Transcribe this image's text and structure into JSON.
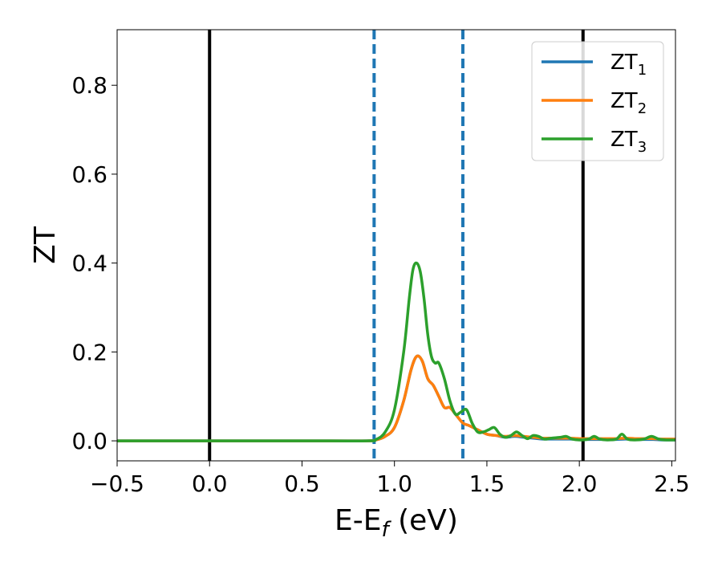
{
  "chart_data": {
    "type": "line",
    "title": "",
    "xlabel": "E-E_f (eV)",
    "ylabel": "ZT",
    "xlim": [
      -0.5,
      2.52
    ],
    "ylim": [
      -0.045,
      0.925
    ],
    "x_ticks": [
      -0.5,
      0.0,
      0.5,
      1.0,
      1.5,
      2.0,
      2.5
    ],
    "x_tick_labels": [
      "−0.5",
      "0.0",
      "0.5",
      "1.0",
      "1.5",
      "2.0",
      "2.5"
    ],
    "y_ticks": [
      0.0,
      0.2,
      0.4,
      0.6,
      0.8
    ],
    "y_tick_labels": [
      "0.0",
      "0.2",
      "0.4",
      "0.6",
      "0.8"
    ],
    "grid": false,
    "legend_position": "top-right",
    "vertical_lines": [
      {
        "x": 0.0,
        "color": "#000000",
        "style": "solid"
      },
      {
        "x": 2.02,
        "color": "#000000",
        "style": "solid"
      },
      {
        "x": 0.89,
        "color": "#1f77b4",
        "style": "dashed"
      },
      {
        "x": 1.37,
        "color": "#1f77b4",
        "style": "dashed"
      }
    ],
    "series": [
      {
        "name": "ZT_1",
        "color": "#1f77b4",
        "x": [
          -0.5,
          0.0,
          0.5,
          0.85,
          0.9,
          0.95,
          1.0,
          1.05,
          1.09,
          1.12,
          1.15,
          1.18,
          1.21,
          1.24,
          1.27,
          1.3,
          1.33,
          1.37,
          1.4,
          1.45,
          1.5,
          1.55,
          1.6,
          1.65,
          1.7,
          1.75,
          1.8,
          1.85,
          1.9,
          1.95,
          2.0,
          2.05,
          2.1,
          2.15,
          2.2,
          2.25,
          2.3,
          2.35,
          2.4,
          2.45,
          2.52
        ],
        "y": [
          0.0,
          0.0,
          0.0,
          0.0,
          0.002,
          0.01,
          0.03,
          0.09,
          0.16,
          0.19,
          0.18,
          0.14,
          0.125,
          0.1,
          0.075,
          0.075,
          0.06,
          0.04,
          0.035,
          0.025,
          0.015,
          0.012,
          0.008,
          0.01,
          0.008,
          0.006,
          0.004,
          0.004,
          0.004,
          0.004,
          0.003,
          0.003,
          0.003,
          0.003,
          0.003,
          0.004,
          0.003,
          0.003,
          0.003,
          0.002,
          0.002
        ]
      },
      {
        "name": "ZT_2",
        "color": "#ff7f0e",
        "x": [
          -0.5,
          0.0,
          0.5,
          0.85,
          0.9,
          0.95,
          1.0,
          1.05,
          1.09,
          1.12,
          1.15,
          1.18,
          1.21,
          1.24,
          1.27,
          1.3,
          1.33,
          1.37,
          1.4,
          1.45,
          1.5,
          1.55,
          1.6,
          1.65,
          1.7,
          1.75,
          1.8,
          1.85,
          1.9,
          1.95,
          2.0,
          2.05,
          2.1,
          2.15,
          2.2,
          2.25,
          2.3,
          2.35,
          2.4,
          2.45,
          2.52
        ],
        "y": [
          0.0,
          0.0,
          0.0,
          0.0,
          0.002,
          0.01,
          0.03,
          0.09,
          0.16,
          0.19,
          0.18,
          0.14,
          0.125,
          0.1,
          0.075,
          0.075,
          0.06,
          0.04,
          0.035,
          0.025,
          0.015,
          0.012,
          0.01,
          0.012,
          0.01,
          0.008,
          0.006,
          0.006,
          0.006,
          0.006,
          0.005,
          0.005,
          0.005,
          0.005,
          0.005,
          0.006,
          0.005,
          0.005,
          0.005,
          0.004,
          0.004
        ]
      },
      {
        "name": "ZT_3",
        "color": "#2ca02c",
        "x": [
          -0.5,
          0.0,
          0.5,
          0.85,
          0.9,
          0.95,
          1.0,
          1.05,
          1.08,
          1.1,
          1.12,
          1.14,
          1.16,
          1.18,
          1.2,
          1.22,
          1.24,
          1.27,
          1.3,
          1.33,
          1.36,
          1.39,
          1.42,
          1.45,
          1.48,
          1.51,
          1.54,
          1.57,
          1.6,
          1.63,
          1.66,
          1.69,
          1.72,
          1.75,
          1.78,
          1.81,
          1.85,
          1.9,
          1.93,
          1.96,
          2.0,
          2.05,
          2.08,
          2.11,
          2.15,
          2.2,
          2.23,
          2.26,
          2.3,
          2.35,
          2.39,
          2.43,
          2.47,
          2.52
        ],
        "y": [
          0.0,
          0.0,
          0.0,
          0.0,
          0.003,
          0.02,
          0.07,
          0.2,
          0.32,
          0.385,
          0.4,
          0.38,
          0.32,
          0.24,
          0.19,
          0.175,
          0.175,
          0.14,
          0.09,
          0.06,
          0.065,
          0.07,
          0.04,
          0.02,
          0.02,
          0.025,
          0.03,
          0.015,
          0.008,
          0.012,
          0.02,
          0.012,
          0.005,
          0.012,
          0.01,
          0.004,
          0.006,
          0.008,
          0.01,
          0.004,
          0.002,
          0.004,
          0.01,
          0.004,
          0.002,
          0.004,
          0.015,
          0.004,
          0.002,
          0.004,
          0.01,
          0.004,
          0.002,
          0.002
        ]
      }
    ]
  },
  "legend": {
    "items": [
      {
        "main": "ZT",
        "sub": "1",
        "color": "#1f77b4"
      },
      {
        "main": "ZT",
        "sub": "2",
        "color": "#ff7f0e"
      },
      {
        "main": "ZT",
        "sub": "3",
        "color": "#2ca02c"
      }
    ]
  },
  "axes": {
    "xlabel_main": "E-E",
    "xlabel_sub": "f",
    "xlabel_unit": " (eV)",
    "ylabel": "ZT"
  }
}
